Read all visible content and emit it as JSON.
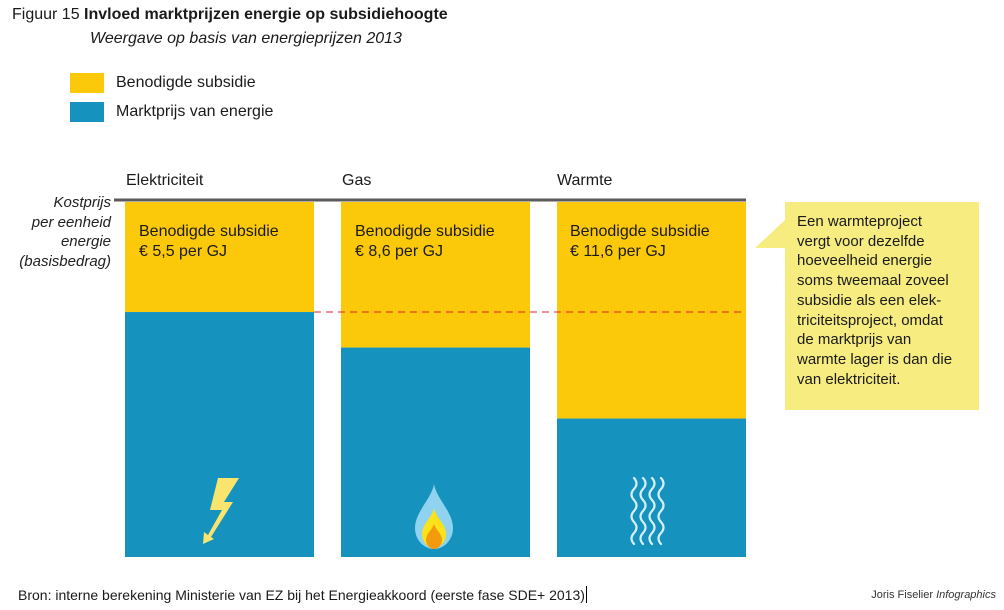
{
  "figure": {
    "number_label": "Figuur 15",
    "title": "Invloed marktprijzen energie op subsidiehoogte",
    "subtitle": "Weergave op basis van energieprijzen 2013"
  },
  "legend": [
    {
      "label": "Benodigde subsidie",
      "color": "#fbc90a"
    },
    {
      "label": "Marktprijs van energie",
      "color": "#1592bd"
    }
  ],
  "axis_label_lines": [
    "Kostprijs",
    "per eenheid",
    "energie",
    "(basisbedrag)"
  ],
  "callout": {
    "text_lines": [
      "Een warmteproject",
      "vergt voor dezelfde",
      "hoeveelheid energie",
      "soms tweemaal zoveel",
      "subsidie als een elek-",
      "triciteitsproject, omdat",
      "de marktprijs van",
      "warmte lager is dan die",
      "van elektriciteit."
    ],
    "color": "#f7ec7f"
  },
  "footer": {
    "source": "Bron: interne berekening Ministerie van EZ bij het Energieakkoord (eerste fase SDE+ 2013)",
    "credit_name": "Joris Fiselier",
    "credit_suffix": "Infographics"
  },
  "chart_data": {
    "type": "bar",
    "stacked": true,
    "normalized": true,
    "title": "Invloed marktprijzen energie op subsidiehoogte",
    "subtitle": "Weergave op basis van energieprijzen 2013",
    "ylabel": "Kostprijs per eenheid energie (basisbedrag)",
    "categories": [
      "Elektriciteit",
      "Gas",
      "Warmte"
    ],
    "icons": [
      "lightning-icon",
      "flame-icon",
      "heat-waves-icon"
    ],
    "series": [
      {
        "name": "Benodigde subsidie",
        "color": "#fbc90a",
        "share_of_cost": [
          0.31,
          0.41,
          0.61
        ]
      },
      {
        "name": "Marktprijs van energie",
        "color": "#1592bd",
        "share_of_cost": [
          0.69,
          0.59,
          0.39
        ]
      }
    ],
    "subsidy_labels": [
      {
        "title": "Benodigde subsidie",
        "value": "€ 5,5 per GJ",
        "amount_eur_per_gj": 5.5
      },
      {
        "title": "Benodigde subsidie",
        "value": "€ 8,6 per GJ",
        "amount_eur_per_gj": 8.6
      },
      {
        "title": "Benodigde subsidie",
        "value": "€ 11,6 per GJ",
        "amount_eur_per_gj": 11.6
      }
    ],
    "reference_line": {
      "description": "Marktprijs elektriciteit",
      "style": "dashed",
      "color": "#e0202a"
    },
    "baseline_color": "#5a5a5a",
    "legend_position": "top-left"
  }
}
